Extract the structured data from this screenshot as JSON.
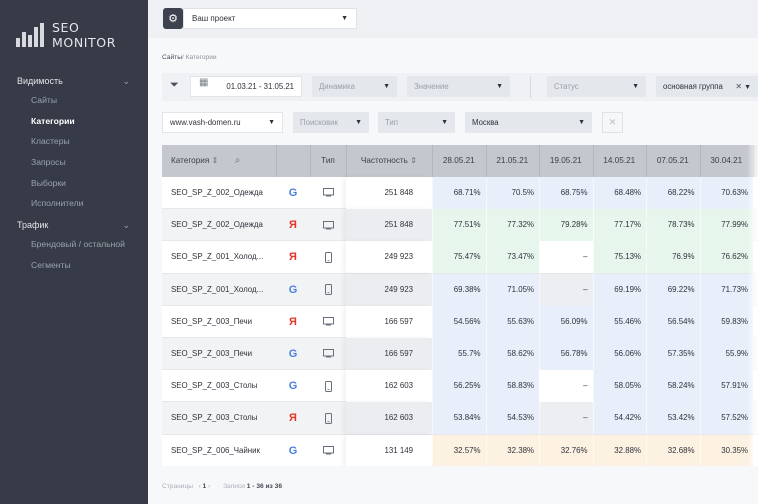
{
  "app": {
    "logo_text": "SEO MONITOR"
  },
  "sidebar": {
    "groups": [
      {
        "label": "Видимость",
        "items": [
          {
            "label": "Сайты",
            "active": false
          },
          {
            "label": "Категории",
            "active": true
          },
          {
            "label": "Кластеры",
            "active": false
          },
          {
            "label": "Запросы",
            "active": false
          },
          {
            "label": "Выборки",
            "active": false
          },
          {
            "label": "Исполнители",
            "active": false
          }
        ]
      },
      {
        "label": "Трафик",
        "items": [
          {
            "label": "Брендовый / остальной",
            "active": false
          },
          {
            "label": "Сегменты",
            "active": false
          }
        ]
      }
    ]
  },
  "topbar": {
    "project_value": "Ваш проект"
  },
  "breadcrumb": {
    "root": "Сайты",
    "separator": "/",
    "current": "Категории"
  },
  "filters": {
    "date_range": "01.03.21 - 31.05.21",
    "dynamics_placeholder": "Динамика",
    "value_placeholder": "Значение",
    "status_placeholder": "Статус",
    "group_value": "основная группа",
    "domain_value": "www.vash-domen.ru",
    "search_engine_placeholder": "Поисковик",
    "type_placeholder": "Тип",
    "region_value": "Москва"
  },
  "table": {
    "headers": {
      "category": "Категория",
      "type": "Тип",
      "frequency": "Частотность",
      "dates": [
        "28.05.21",
        "21.05.21",
        "19.05.21",
        "14.05.21",
        "07.05.21",
        "30.04.21"
      ]
    },
    "rows": [
      {
        "category": "SEO_SP_Z_002_Одежда",
        "engine": "google",
        "device": "desktop",
        "frequency": "251 848",
        "values": [
          "68.71%",
          "70.5%",
          "68.75%",
          "68.48%",
          "68.22%",
          "70.63%"
        ],
        "tint": "blue"
      },
      {
        "category": "SEO_SP_Z_002_Одежда",
        "engine": "yandex",
        "device": "desktop",
        "frequency": "251 848",
        "values": [
          "77.51%",
          "77.32%",
          "79.28%",
          "77.17%",
          "78.73%",
          "77.99%"
        ],
        "tint": "green"
      },
      {
        "category": "SEO_SP_Z_001_Холод...",
        "engine": "yandex",
        "device": "mobile",
        "frequency": "249 923",
        "values": [
          "75.47%",
          "73.47%",
          "–",
          "75.13%",
          "76.9%",
          "76.62%"
        ],
        "tint": "green"
      },
      {
        "category": "SEO_SP_Z_001_Холод...",
        "engine": "google",
        "device": "mobile",
        "frequency": "249 923",
        "values": [
          "69.38%",
          "71.05%",
          "–",
          "69.19%",
          "69.22%",
          "71.73%"
        ],
        "tint": "blue"
      },
      {
        "category": "SEO_SP_Z_003_Печи",
        "engine": "yandex",
        "device": "desktop",
        "frequency": "166 597",
        "values": [
          "54.56%",
          "55.63%",
          "56.09%",
          "55.46%",
          "56.54%",
          "59.83%"
        ],
        "tint": "blue"
      },
      {
        "category": "SEO_SP_Z_003_Печи",
        "engine": "google",
        "device": "desktop",
        "frequency": "166 597",
        "values": [
          "55.7%",
          "58.62%",
          "56.78%",
          "56.06%",
          "57.35%",
          "55.9%"
        ],
        "tint": "blue"
      },
      {
        "category": "SEO_SP_Z_003_Столы",
        "engine": "google",
        "device": "mobile",
        "frequency": "162 603",
        "values": [
          "56.25%",
          "58.83%",
          "–",
          "58.05%",
          "58.24%",
          "57.91%"
        ],
        "tint": "blue"
      },
      {
        "category": "SEO_SP_Z_003_Столы",
        "engine": "yandex",
        "device": "mobile",
        "frequency": "162 603",
        "values": [
          "53.84%",
          "54.53%",
          "–",
          "54.42%",
          "53.42%",
          "57.52%"
        ],
        "tint": "blue"
      },
      {
        "category": "SEO_SP_Z_006_Чайник",
        "engine": "google",
        "device": "desktop",
        "frequency": "131 149",
        "values": [
          "32.57%",
          "32.38%",
          "32.76%",
          "32.88%",
          "32.68%",
          "30.35%"
        ],
        "tint": "orange"
      }
    ]
  },
  "pager": {
    "pages_label": "Страницы",
    "current_page": "1",
    "records_label": "Записи",
    "records_value": "1 - 36 из 36"
  },
  "colors": {
    "sidebar_bg": "#363b47",
    "header_bg": "#c4c7cd",
    "tint_blue": "#e9eefb",
    "tint_green": "#e6f6ec",
    "tint_orange": "#fdf1e2",
    "google_blue": "#4a7fe0",
    "yandex_red": "#e5352b"
  }
}
